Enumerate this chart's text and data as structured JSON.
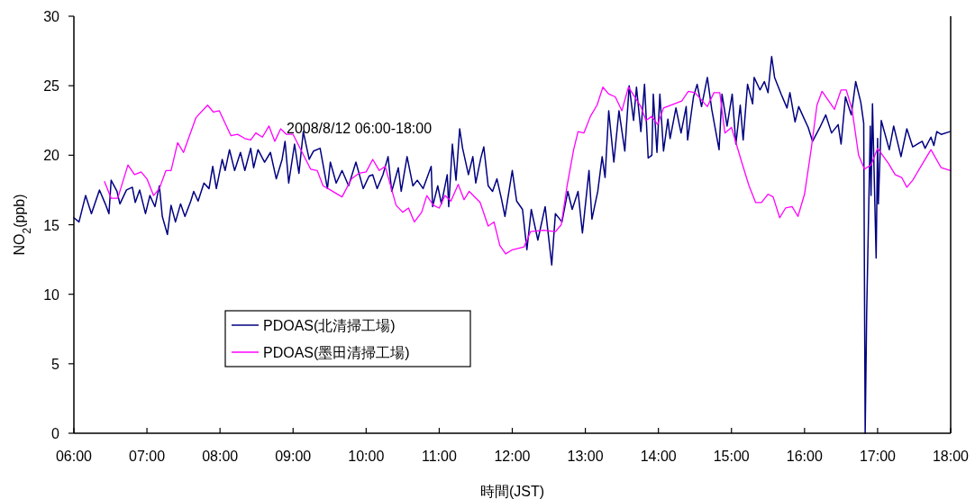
{
  "chart_data": {
    "type": "line",
    "xlabel": "時間(JST)",
    "ylabel": "NO$_{2}$(ppb)",
    "annotations": [
      "2008/8/12 06:00-18:00"
    ],
    "xlim": [
      6,
      18
    ],
    "ylim": [
      0,
      30
    ],
    "xticks": [
      {
        "value": 6,
        "label": "06:00"
      },
      {
        "value": 7,
        "label": "07:00"
      },
      {
        "value": 8,
        "label": "08:00"
      },
      {
        "value": 9,
        "label": "09:00"
      },
      {
        "value": 10,
        "label": "10:00"
      },
      {
        "value": 11,
        "label": "11:00"
      },
      {
        "value": 12,
        "label": "12:00"
      },
      {
        "value": 13,
        "label": "13:00"
      },
      {
        "value": 14,
        "label": "14:00"
      },
      {
        "value": 15,
        "label": "15:00"
      },
      {
        "value": 16,
        "label": "16:00"
      },
      {
        "value": 17,
        "label": "17:00"
      },
      {
        "value": 18,
        "label": "18:00"
      }
    ],
    "yticks": [
      0,
      5,
      10,
      15,
      20,
      25,
      30
    ],
    "grid": false,
    "legend": "bottom left",
    "marker": "none",
    "line_style": "solid",
    "series": [
      {
        "name": "PDOAS(北清掃工場)",
        "color": "#000080",
        "x": [
          6.0,
          6.07,
          6.16,
          6.24,
          6.35,
          6.43,
          6.48,
          6.51,
          6.59,
          6.63,
          6.72,
          6.8,
          6.84,
          6.9,
          6.98,
          7.04,
          7.11,
          7.17,
          7.21,
          7.28,
          7.33,
          7.39,
          7.46,
          7.52,
          7.6,
          7.64,
          7.7,
          7.78,
          7.85,
          7.9,
          7.95,
          8.03,
          8.07,
          8.13,
          8.2,
          8.28,
          8.34,
          8.42,
          8.46,
          8.52,
          8.61,
          8.69,
          8.77,
          8.85,
          8.89,
          8.94,
          9.02,
          9.08,
          9.14,
          9.22,
          9.28,
          9.37,
          9.47,
          9.51,
          9.59,
          9.67,
          9.76,
          9.86,
          9.96,
          10.04,
          10.09,
          10.15,
          10.23,
          10.3,
          10.35,
          10.44,
          10.48,
          10.56,
          10.64,
          10.7,
          10.78,
          10.89,
          10.91,
          10.98,
          11.03,
          11.11,
          11.13,
          11.18,
          11.23,
          11.28,
          11.32,
          11.4,
          11.46,
          11.5,
          11.57,
          11.61,
          11.67,
          11.73,
          11.79,
          11.85,
          11.9,
          12.0,
          12.06,
          12.14,
          12.2,
          12.26,
          12.35,
          12.45,
          12.54,
          12.59,
          12.68,
          12.76,
          12.82,
          12.9,
          12.96,
          13.05,
          13.09,
          13.17,
          13.23,
          13.27,
          13.32,
          13.39,
          13.46,
          13.54,
          13.6,
          13.66,
          13.7,
          13.76,
          13.81,
          13.86,
          13.91,
          13.93,
          13.98,
          14.02,
          14.07,
          14.13,
          14.16,
          14.24,
          14.31,
          14.38,
          14.4,
          14.48,
          14.53,
          14.59,
          14.67,
          14.73,
          14.83,
          14.87,
          14.94,
          15.01,
          15.06,
          15.12,
          15.16,
          15.22,
          15.29,
          15.31,
          15.39,
          15.45,
          15.5,
          15.55,
          15.59,
          15.68,
          15.76,
          15.8,
          15.87,
          15.92,
          15.98,
          16.05,
          16.11,
          16.21,
          16.29,
          16.37,
          16.46,
          16.5,
          16.56,
          16.64,
          16.7,
          16.77,
          16.81,
          16.83,
          16.85,
          16.9,
          16.91,
          16.93,
          16.98,
          17.0,
          17.01,
          17.05,
          17.16,
          17.22,
          17.32,
          17.4,
          17.48,
          17.61,
          17.65,
          17.73,
          17.77,
          17.81,
          17.87,
          17.99
        ],
        "values": [
          15.5,
          15.2,
          17.1,
          15.8,
          17.5,
          16.5,
          15.8,
          18.2,
          17.4,
          16.5,
          17.5,
          17.7,
          16.6,
          17.5,
          15.8,
          17.1,
          16.3,
          17.8,
          15.6,
          14.3,
          16.4,
          15.2,
          16.5,
          15.6,
          16.7,
          17.4,
          16.7,
          18.0,
          17.6,
          19.2,
          17.6,
          19.7,
          18.9,
          20.4,
          18.9,
          20.2,
          18.9,
          20.5,
          19.1,
          20.4,
          19.5,
          20.2,
          18.3,
          19.7,
          21.0,
          18.0,
          20.8,
          18.7,
          21.7,
          19.7,
          20.3,
          20.5,
          17.6,
          19.5,
          18.0,
          18.9,
          17.8,
          19.5,
          17.6,
          18.5,
          18.6,
          17.6,
          18.6,
          19.9,
          17.4,
          19.1,
          17.4,
          19.9,
          17.8,
          18.2,
          17.6,
          19.2,
          16.3,
          17.8,
          16.5,
          18.6,
          16.3,
          20.8,
          18.2,
          21.9,
          20.5,
          18.6,
          19.9,
          18.0,
          19.8,
          20.6,
          17.8,
          17.4,
          18.3,
          16.9,
          15.6,
          18.9,
          16.7,
          16.1,
          13.2,
          16.1,
          13.9,
          16.3,
          12.1,
          15.8,
          15.2,
          17.4,
          16.1,
          17.4,
          14.4,
          18.9,
          15.4,
          17.4,
          19.9,
          18.4,
          23.2,
          19.5,
          23.2,
          20.3,
          25.0,
          22.5,
          24.9,
          21.7,
          25.1,
          19.8,
          20.0,
          24.4,
          20.2,
          24.4,
          20.3,
          22.6,
          21.2,
          23.4,
          21.6,
          23.5,
          21.1,
          24.2,
          25.1,
          23.5,
          25.6,
          23.3,
          20.4,
          24.4,
          22.1,
          24.4,
          20.8,
          23.6,
          21.1,
          25.1,
          23.7,
          25.6,
          24.7,
          25.3,
          24.5,
          27.1,
          25.6,
          24.4,
          23.4,
          24.5,
          22.4,
          23.5,
          22.8,
          22.0,
          21.0,
          22.0,
          22.9,
          21.6,
          22.2,
          20.8,
          24.2,
          22.9,
          25.3,
          23.8,
          22.3,
          0,
          8.5,
          22.1,
          17.1,
          23.7,
          12.6,
          21.2,
          16.5,
          22.5,
          20.4,
          22.1,
          19.9,
          21.9,
          20.6,
          21.0,
          20.5,
          21.3,
          20.7,
          21.7,
          21.5,
          21.7
        ]
      },
      {
        "name": "PDOAS(墨田清掃工場)",
        "color": "#ff00ff",
        "x": [
          6.42,
          6.51,
          6.6,
          6.74,
          6.83,
          6.92,
          7.0,
          7.09,
          7.17,
          7.26,
          7.33,
          7.42,
          7.5,
          7.67,
          7.83,
          7.91,
          7.99,
          8.15,
          8.24,
          8.34,
          8.42,
          8.49,
          8.58,
          8.67,
          8.75,
          8.83,
          8.91,
          9.0,
          9.24,
          9.33,
          9.41,
          9.51,
          9.67,
          9.8,
          9.9,
          10.0,
          10.09,
          10.18,
          10.26,
          10.41,
          10.5,
          10.58,
          10.66,
          10.76,
          10.83,
          10.92,
          11.0,
          11.08,
          11.16,
          11.26,
          11.34,
          11.41,
          11.56,
          11.67,
          11.75,
          11.83,
          11.91,
          12.0,
          12.16,
          12.25,
          12.43,
          12.59,
          12.67,
          12.75,
          12.84,
          12.9,
          12.98,
          13.07,
          13.16,
          13.24,
          13.32,
          13.41,
          13.5,
          13.59,
          13.76,
          13.83,
          13.91,
          13.99,
          14.07,
          14.32,
          14.41,
          14.5,
          14.67,
          14.76,
          14.84,
          14.91,
          15.0,
          15.14,
          15.24,
          15.33,
          15.41,
          15.5,
          15.57,
          15.66,
          15.74,
          15.83,
          15.91,
          16.0,
          16.09,
          16.17,
          16.24,
          16.41,
          16.5,
          16.57,
          16.65,
          16.74,
          16.82,
          16.91,
          17.0,
          17.15,
          17.24,
          17.33,
          17.4,
          17.48,
          17.73,
          17.87,
          18.0
        ],
        "values": [
          18.1,
          16.9,
          16.9,
          19.3,
          18.6,
          18.8,
          18.3,
          17.1,
          17.6,
          18.9,
          18.9,
          20.9,
          20.2,
          22.7,
          23.6,
          23.1,
          23.2,
          21.4,
          21.5,
          21.2,
          21.1,
          21.6,
          21.3,
          22.1,
          21.0,
          21.9,
          21.5,
          21.5,
          19.0,
          18.9,
          17.8,
          17.5,
          17.0,
          18.3,
          18.7,
          18.8,
          19.7,
          18.9,
          19.2,
          16.4,
          15.9,
          16.2,
          15.2,
          15.9,
          17.1,
          16.4,
          16.2,
          17.1,
          16.7,
          17.9,
          16.8,
          17.4,
          16.6,
          14.9,
          15.2,
          13.5,
          12.9,
          13.2,
          13.4,
          14.5,
          14.6,
          14.5,
          15.0,
          17.8,
          20.4,
          21.7,
          21.6,
          22.8,
          23.6,
          24.9,
          24.4,
          24.2,
          23.2,
          24.9,
          23.5,
          22.5,
          22.8,
          22.2,
          23.4,
          23.9,
          24.6,
          24.5,
          23.5,
          24.5,
          24.5,
          21.6,
          22.0,
          19.5,
          17.8,
          16.6,
          16.6,
          17.2,
          17.0,
          15.5,
          16.2,
          16.3,
          15.6,
          17.2,
          20.4,
          23.6,
          24.6,
          23.3,
          24.7,
          24.7,
          23.3,
          20.0,
          19.0,
          19.3,
          20.5,
          19.4,
          18.6,
          18.4,
          17.7,
          18.2,
          20.4,
          19.1,
          18.9
        ]
      }
    ]
  }
}
